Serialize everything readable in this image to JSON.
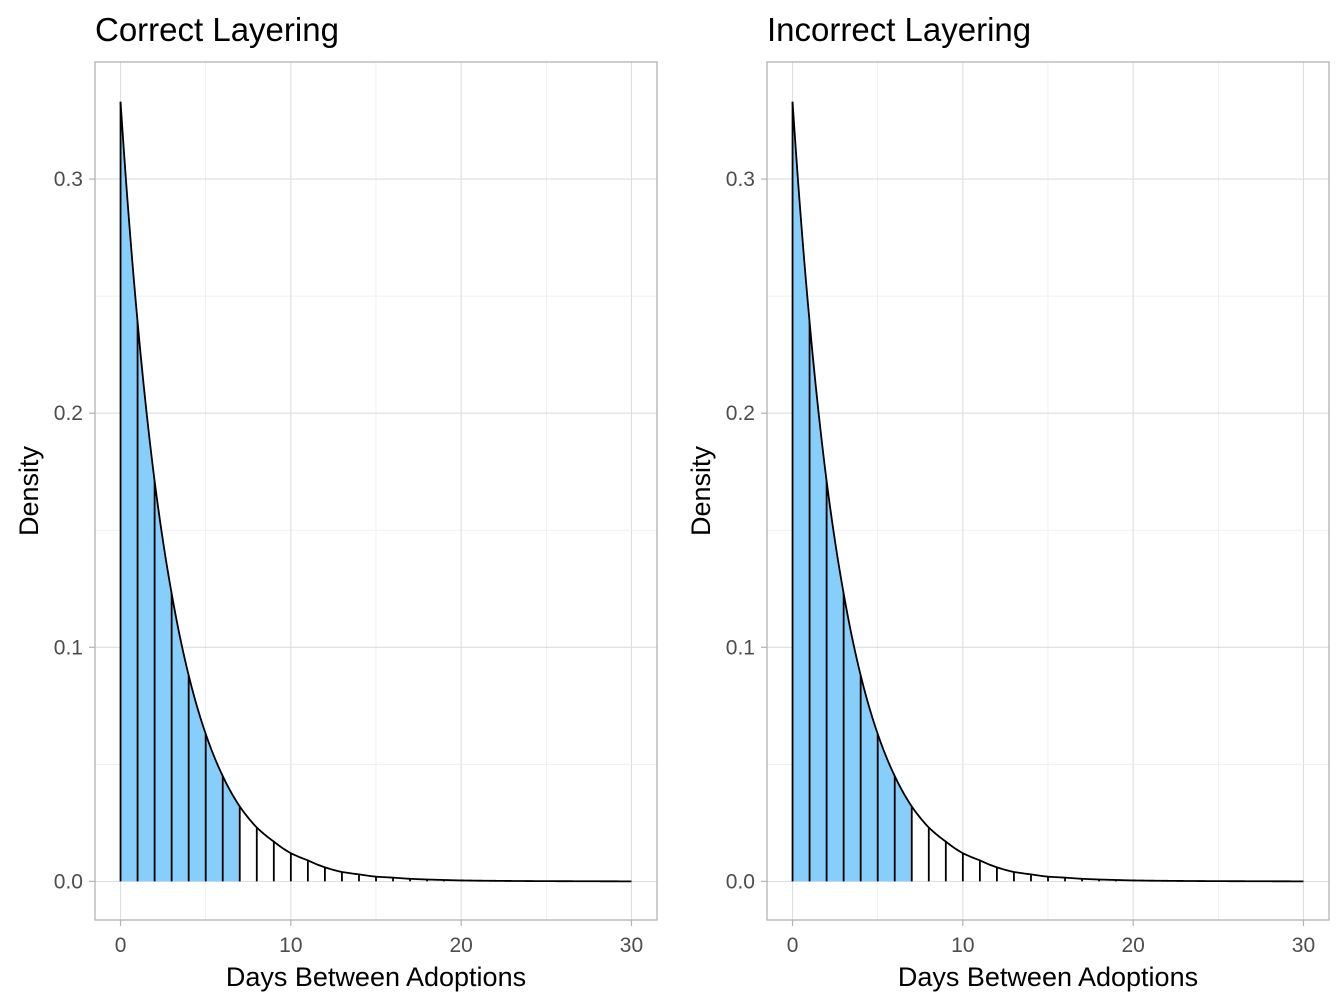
{
  "chart_data": [
    {
      "type": "area",
      "title": "Correct Layering",
      "xlabel": "Days Between Adoptions",
      "ylabel": "Density",
      "xlim": [
        -1.5,
        31.5
      ],
      "ylim": [
        -0.0165,
        0.35
      ],
      "x_ticks": [
        0,
        10,
        20,
        30
      ],
      "x_tick_labels": [
        "0",
        "10",
        "20",
        "30"
      ],
      "y_ticks": [
        0.0,
        0.1,
        0.2,
        0.3
      ],
      "y_tick_labels": [
        "0.0",
        "0.1",
        "0.2",
        "0.3"
      ],
      "grid": true,
      "curve": {
        "x": [
          0,
          1,
          2,
          3,
          4,
          5,
          6,
          7,
          8,
          9,
          10,
          11,
          12,
          13,
          14,
          15,
          16,
          17,
          18,
          19,
          20,
          25,
          30
        ],
        "y": [
          0.333,
          0.239,
          0.171,
          0.123,
          0.088,
          0.063,
          0.045,
          0.032,
          0.023,
          0.017,
          0.012,
          0.009,
          0.006,
          0.004,
          0.003,
          0.002,
          0.0016,
          0.0011,
          0.0008,
          0.0006,
          0.0004,
          0.0001,
          0.0
        ]
      },
      "shaded_range": [
        0,
        7
      ],
      "fill_color": "#87CEFA",
      "line_color": "#000000"
    },
    {
      "type": "area",
      "title": "Incorrect Layering",
      "xlabel": "Days Between Adoptions",
      "ylabel": "Density",
      "xlim": [
        -1.5,
        31.5
      ],
      "ylim": [
        -0.0165,
        0.35
      ],
      "x_ticks": [
        0,
        10,
        20,
        30
      ],
      "x_tick_labels": [
        "0",
        "10",
        "20",
        "30"
      ],
      "y_ticks": [
        0.0,
        0.1,
        0.2,
        0.3
      ],
      "y_tick_labels": [
        "0.0",
        "0.1",
        "0.2",
        "0.3"
      ],
      "grid": true,
      "curve": {
        "x": [
          0,
          1,
          2,
          3,
          4,
          5,
          6,
          7,
          8,
          9,
          10,
          11,
          12,
          13,
          14,
          15,
          16,
          17,
          18,
          19,
          20,
          25,
          30
        ],
        "y": [
          0.333,
          0.239,
          0.171,
          0.123,
          0.088,
          0.063,
          0.045,
          0.032,
          0.023,
          0.017,
          0.012,
          0.009,
          0.006,
          0.004,
          0.003,
          0.002,
          0.0016,
          0.0011,
          0.0008,
          0.0006,
          0.0004,
          0.0001,
          0.0
        ]
      },
      "shaded_range": [
        0,
        7
      ],
      "fill_color": "#87CEFA",
      "line_color": "#000000"
    }
  ]
}
